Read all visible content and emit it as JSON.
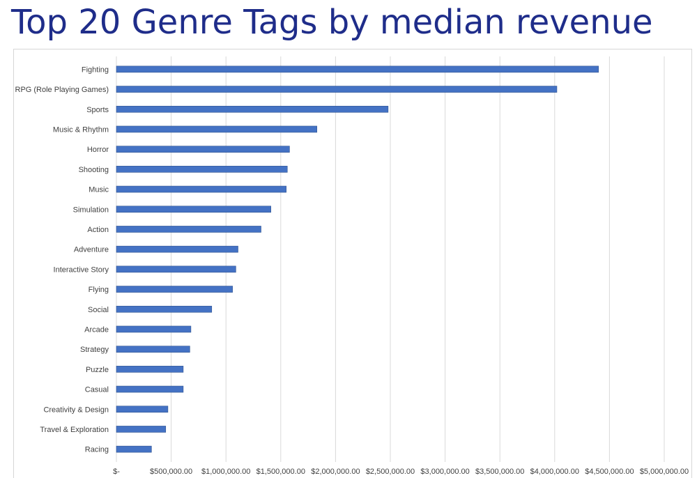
{
  "page": {
    "title": "Top 20 Genre Tags by median revenue"
  },
  "colors": {
    "title": "#1f2d8a",
    "bar": "#4472c4",
    "bar_edge": "#2f528f",
    "gridline": "#d9d9d9",
    "text": "#404040"
  },
  "chart_data": {
    "type": "bar",
    "orientation": "horizontal",
    "title": "Top 20 Genre Tags by median revenue",
    "xlabel": "",
    "ylabel": "",
    "xlim": [
      0,
      5000000
    ],
    "grid": "vertical-major",
    "legend": "none",
    "x_ticks": [
      0,
      500000,
      1000000,
      1500000,
      2000000,
      2500000,
      3000000,
      3500000,
      4000000,
      4500000,
      5000000
    ],
    "x_tick_labels": [
      "$-",
      "$500,000.00",
      "$1,000,000.00",
      "$1,500,000.00",
      "$2,000,000.00",
      "$2,500,000.00",
      "$3,000,000.00",
      "$3,500,000.00",
      "$4,000,000.00",
      "$4,500,000.00",
      "$5,000,000.00"
    ],
    "categories": [
      "Fighting",
      "RPG (Role Playing Games)",
      "Sports",
      "Music & Rhythm",
      "Horror",
      "Shooting",
      "Music",
      "Simulation",
      "Action",
      "Adventure",
      "Interactive Story",
      "Flying",
      "Social",
      "Arcade",
      "Strategy",
      "Puzzle",
      "Casual",
      "Creativity & Design",
      "Travel & Exploration",
      "Racing"
    ],
    "values": [
      4400000,
      4020000,
      2480000,
      1830000,
      1580000,
      1560000,
      1550000,
      1410000,
      1320000,
      1110000,
      1090000,
      1060000,
      870000,
      680000,
      670000,
      610000,
      610000,
      470000,
      450000,
      320000
    ]
  }
}
